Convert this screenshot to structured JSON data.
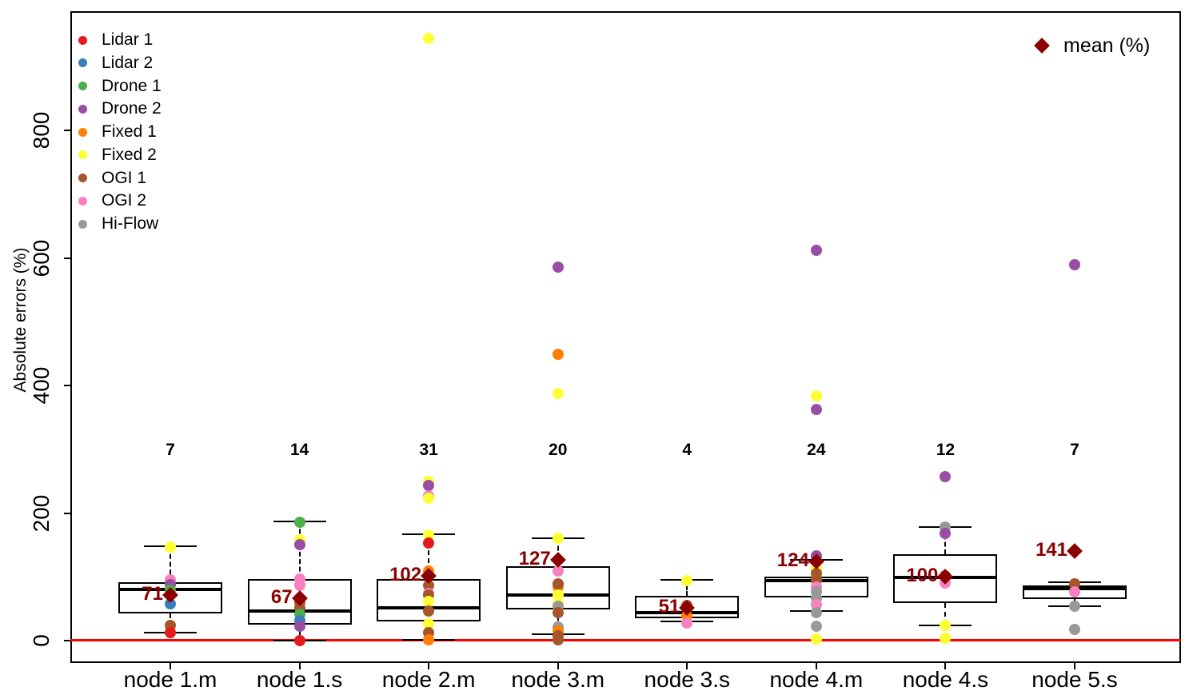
{
  "chart_data": {
    "type": "boxplot",
    "title": "",
    "xlabel": "",
    "ylabel": "Absolute errors (%)",
    "ylim": [
      -35,
      987
    ],
    "yticks": [
      0,
      200,
      400,
      600,
      800
    ],
    "grid": false,
    "zero_line": {
      "value": 0,
      "color": "#FF0000"
    },
    "mean_marker": {
      "label": "mean (%)",
      "color": "#8B0000",
      "shape": "diamond",
      "legend_position": "top-right"
    },
    "legend_position": "top-left",
    "legend": [
      {
        "label": "Lidar 1",
        "color": "#E41A1C"
      },
      {
        "label": "Lidar 2",
        "color": "#377EB8"
      },
      {
        "label": "Drone 1",
        "color": "#4DAF4A"
      },
      {
        "label": "Drone 2",
        "color": "#984EA3"
      },
      {
        "label": "Fixed 1",
        "color": "#FF7F00"
      },
      {
        "label": "Fixed 2",
        "color": "#FFFF33"
      },
      {
        "label": "OGI 1",
        "color": "#A65628"
      },
      {
        "label": "OGI 2",
        "color": "#F781BF"
      },
      {
        "label": "Hi-Flow",
        "color": "#999999"
      }
    ],
    "groups": [
      {
        "label": "node 1.m",
        "count": 7,
        "mean": 71,
        "box": {
          "lo": 13,
          "q1": 43,
          "med": 80,
          "q3": 91,
          "hi": 148
        },
        "points": [
          [
            "Fixed 2",
            147
          ],
          [
            "OGI 2",
            95
          ],
          [
            "Drone 2",
            88
          ],
          [
            "Drone 1",
            79
          ],
          [
            "Lidar 2",
            58
          ],
          [
            "OGI 1",
            24
          ],
          [
            "Lidar 1",
            12
          ]
        ]
      },
      {
        "label": "node 1.s",
        "count": 14,
        "mean": 67,
        "box": {
          "lo": 0,
          "q1": 25,
          "med": 47,
          "q3": 97,
          "hi": 187
        },
        "points": [
          [
            "Drone 1",
            186
          ],
          [
            "Fixed 2",
            158
          ],
          [
            "Drone 2",
            151
          ],
          [
            "OGI 2",
            97
          ],
          [
            "OGI 2",
            86
          ],
          [
            "OGI 1",
            60
          ],
          [
            "OGI 1",
            52
          ],
          [
            "Drone 1",
            42
          ],
          [
            "Lidar 2",
            31
          ],
          [
            "Drone 2",
            22
          ],
          [
            "Lidar 1",
            0
          ]
        ]
      },
      {
        "label": "node 2.m",
        "count": 31,
        "mean": 102,
        "box": {
          "lo": 1,
          "q1": 30,
          "med": 51,
          "q3": 97,
          "hi": 167
        },
        "points": [
          [
            "Fixed 2",
            944
          ],
          [
            "Fixed 2",
            250
          ],
          [
            "Drone 2",
            243
          ],
          [
            "OGI 2",
            227
          ],
          [
            "Fixed 2",
            223
          ],
          [
            "Fixed 2",
            166
          ],
          [
            "Lidar 1",
            153
          ],
          [
            "Fixed 1",
            109
          ],
          [
            "OGI 1",
            87
          ],
          [
            "OGI 2",
            74
          ],
          [
            "OGI 1",
            71
          ],
          [
            "Fixed 2",
            61
          ],
          [
            "OGI 1",
            47
          ],
          [
            "Fixed 2",
            26
          ],
          [
            "OGI 1",
            12
          ],
          [
            "Fixed 1",
            1
          ]
        ]
      },
      {
        "label": "node 3.m",
        "count": 20,
        "mean": 127,
        "box": {
          "lo": 10,
          "q1": 49,
          "med": 72,
          "q3": 117,
          "hi": 161
        },
        "points": [
          [
            "Drone 2",
            586
          ],
          [
            "Fixed 1",
            449
          ],
          [
            "Fixed 2",
            387
          ],
          [
            "Fixed 2",
            161
          ],
          [
            "OGI 2",
            109
          ],
          [
            "Fixed 1",
            84
          ],
          [
            "OGI 1",
            89
          ],
          [
            "Fixed 2",
            71
          ],
          [
            "Fixed 2",
            58
          ],
          [
            "Hi-Flow",
            54
          ],
          [
            "OGI 1",
            44
          ],
          [
            "Hi-Flow",
            21
          ],
          [
            "Fixed 1",
            15
          ],
          [
            "OGI 1",
            7
          ],
          [
            "OGI 1",
            1
          ]
        ]
      },
      {
        "label": "node 3.s",
        "count": 4,
        "mean": 51,
        "box": {
          "lo": 30,
          "q1": 35,
          "med": 44,
          "q3": 70,
          "hi": 95
        },
        "points": [
          [
            "Fixed 2",
            94
          ],
          [
            "OGI 1",
            55
          ],
          [
            "Fixed 1",
            39
          ],
          [
            "OGI 2",
            28
          ]
        ]
      },
      {
        "label": "node 4.m",
        "count": 24,
        "mean": 124,
        "box": {
          "lo": 46,
          "q1": 68,
          "med": 94,
          "q3": 100,
          "hi": 127
        },
        "points": [
          [
            "Drone 2",
            612
          ],
          [
            "Fixed 2",
            384
          ],
          [
            "Drone 2",
            362
          ],
          [
            "Drone 2",
            133
          ],
          [
            "Fixed 2",
            113
          ],
          [
            "OGI 1",
            105
          ],
          [
            "OGI 1",
            95
          ],
          [
            "OGI 2",
            84
          ],
          [
            "Hi-Flow",
            76
          ],
          [
            "Hi-Flow",
            66
          ],
          [
            "OGI 2",
            56
          ],
          [
            "Hi-Flow",
            44
          ],
          [
            "Hi-Flow",
            22
          ],
          [
            "Fixed 2",
            2
          ]
        ]
      },
      {
        "label": "node 4.s",
        "count": 12,
        "mean": 100,
        "box": {
          "lo": 24,
          "q1": 59,
          "med": 99,
          "q3": 135,
          "hi": 178
        },
        "points": [
          [
            "Drone 2",
            257
          ],
          [
            "Hi-Flow",
            178
          ],
          [
            "Drone 2",
            168
          ],
          [
            "OGI 1",
            101
          ],
          [
            "OGI 2",
            90
          ],
          [
            "Fixed 2",
            24
          ],
          [
            "Fixed 2",
            4
          ]
        ]
      },
      {
        "label": "node 5.s",
        "count": 7,
        "mean": 141,
        "box": {
          "lo": 54,
          "q1": 65,
          "med": 82,
          "q3": 86,
          "hi": 91
        },
        "points": [
          [
            "Drone 2",
            589
          ],
          [
            "OGI 1",
            89
          ],
          [
            "OGI 2",
            77
          ],
          [
            "Hi-Flow",
            54
          ],
          [
            "Hi-Flow",
            17
          ]
        ]
      }
    ]
  }
}
